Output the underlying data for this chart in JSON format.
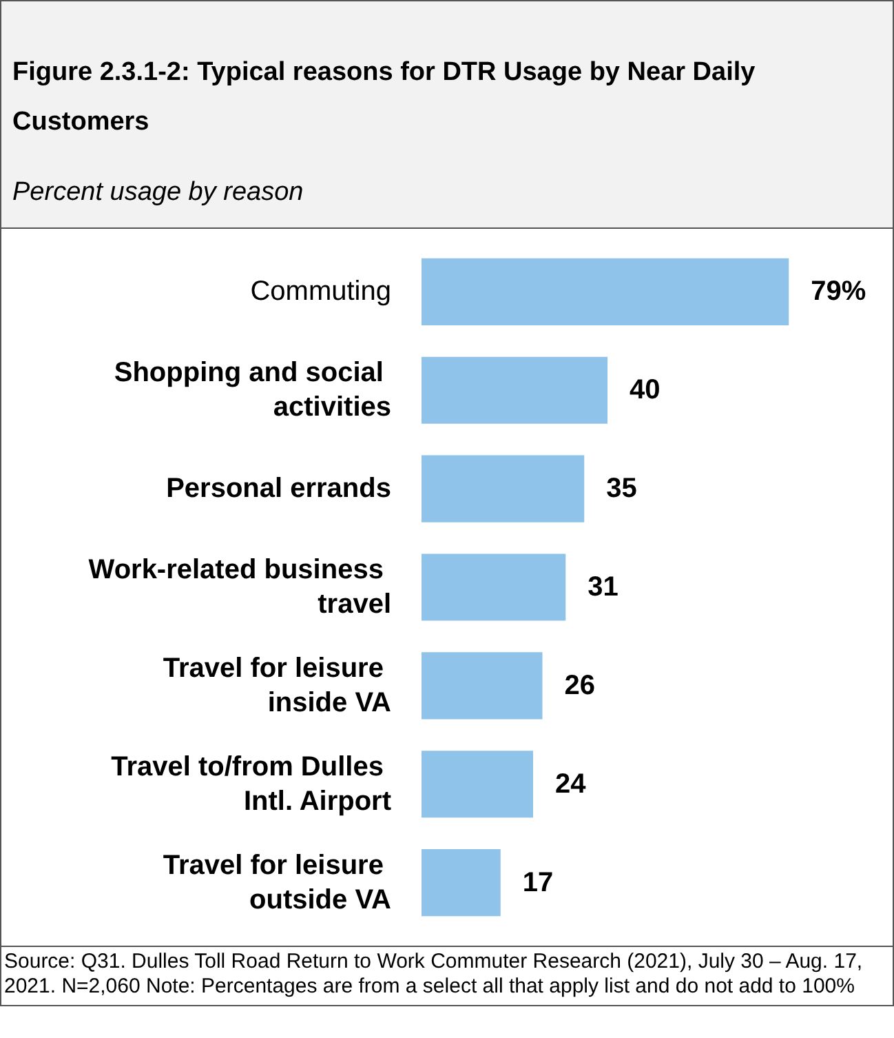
{
  "chart_data": {
    "type": "bar",
    "orientation": "horizontal",
    "title": "Figure 2.3.1-2: Typical reasons for DTR Usage by Near Daily Customers",
    "subtitle": "Percent usage by reason",
    "categories": [
      "Commuting",
      "Shopping and social activities",
      "Personal errands",
      "Work-related business travel",
      "Travel for leisure inside VA",
      "Travel to/from Dulles Intl. Airport",
      "Travel for leisure outside VA"
    ],
    "values": [
      79,
      40,
      35,
      31,
      26,
      24,
      17
    ],
    "value_labels": [
      "79%",
      "40",
      "35",
      "31",
      "26",
      "24",
      "17"
    ],
    "color": "#8fc3ea",
    "tick_labels": "y",
    "annotations": [
      "Source: Q31. Dulles Toll Road Return to Work Commuter Research (2021), July 30 – Aug. 17, 2021. N=2,060 Note: Percentages are from a select all that apply list and do not add to 100%"
    ]
  }
}
